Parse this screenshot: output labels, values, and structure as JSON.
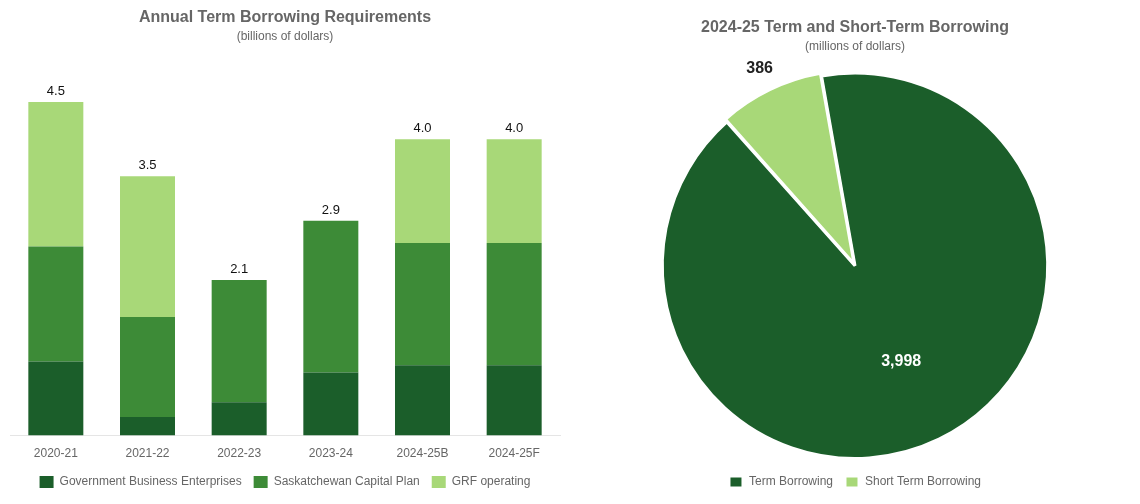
{
  "chart_data": [
    {
      "type": "bar",
      "title": "Annual Term Borrowing Requirements",
      "subtitle": "(billions of dollars)",
      "categories": [
        "2020-21",
        "2021-22",
        "2022-23",
        "2023-24",
        "2024-25B",
        "2024-25F"
      ],
      "series": [
        {
          "name": "Government Business Enterprises",
          "color": "#1b5e2a",
          "values": [
            1.0,
            0.25,
            0.45,
            0.85,
            0.95,
            0.95
          ]
        },
        {
          "name": "Saskatchewan Capital Plan",
          "color": "#3d8b37",
          "values": [
            1.55,
            1.35,
            1.65,
            2.05,
            1.65,
            1.65
          ]
        },
        {
          "name": "GRF operating",
          "color": "#a8d878",
          "values": [
            1.95,
            1.9,
            0.0,
            0.0,
            1.4,
            1.4
          ]
        }
      ],
      "stacked": true,
      "totals": [
        4.5,
        3.5,
        2.1,
        2.9,
        4.0,
        4.0
      ],
      "total_labels": [
        "4.5",
        "3.5",
        "2.1",
        "2.9",
        "4.0",
        "4.0"
      ],
      "ylim": [
        0,
        5.1
      ],
      "tick_labels": "x",
      "grid": false,
      "legend": "bottom"
    },
    {
      "type": "pie",
      "title": "2024-25 Term and Short-Term Borrowing",
      "subtitle": "(millions of dollars)",
      "categories": [
        "Term Borrowing",
        "Short Term Borrowing"
      ],
      "values": [
        3998,
        386
      ],
      "value_labels": [
        "3,998",
        "386"
      ],
      "colors": [
        "#1b5e2a",
        "#a8d878"
      ],
      "data_labels": true,
      "legend": "bottom"
    }
  ]
}
